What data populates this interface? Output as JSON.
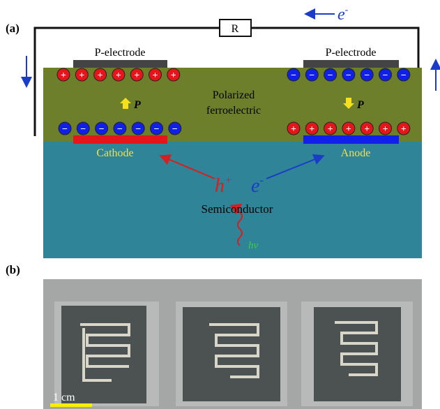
{
  "panel_a": {
    "label": "(a)",
    "resistor": "R",
    "top_carrier": {
      "base": "e",
      "sup": "-"
    },
    "left_electrode": "P-electrode",
    "right_electrode": "P-electrode",
    "layer_lines": [
      "Polarized",
      "ferroelectric"
    ],
    "charges": {
      "plus": "+",
      "minus": "−"
    },
    "polarization_left": "P",
    "polarization_right": "P",
    "cathode": "Cathode",
    "anode": "Anode",
    "hole": {
      "base": "h",
      "sup": "+"
    },
    "electron": {
      "base": "e",
      "sup": "-"
    },
    "semiconductor": "Semiconductor",
    "photon": "hv"
  },
  "panel_b": {
    "label": "(b)",
    "scale_bar": "1 cm"
  }
}
